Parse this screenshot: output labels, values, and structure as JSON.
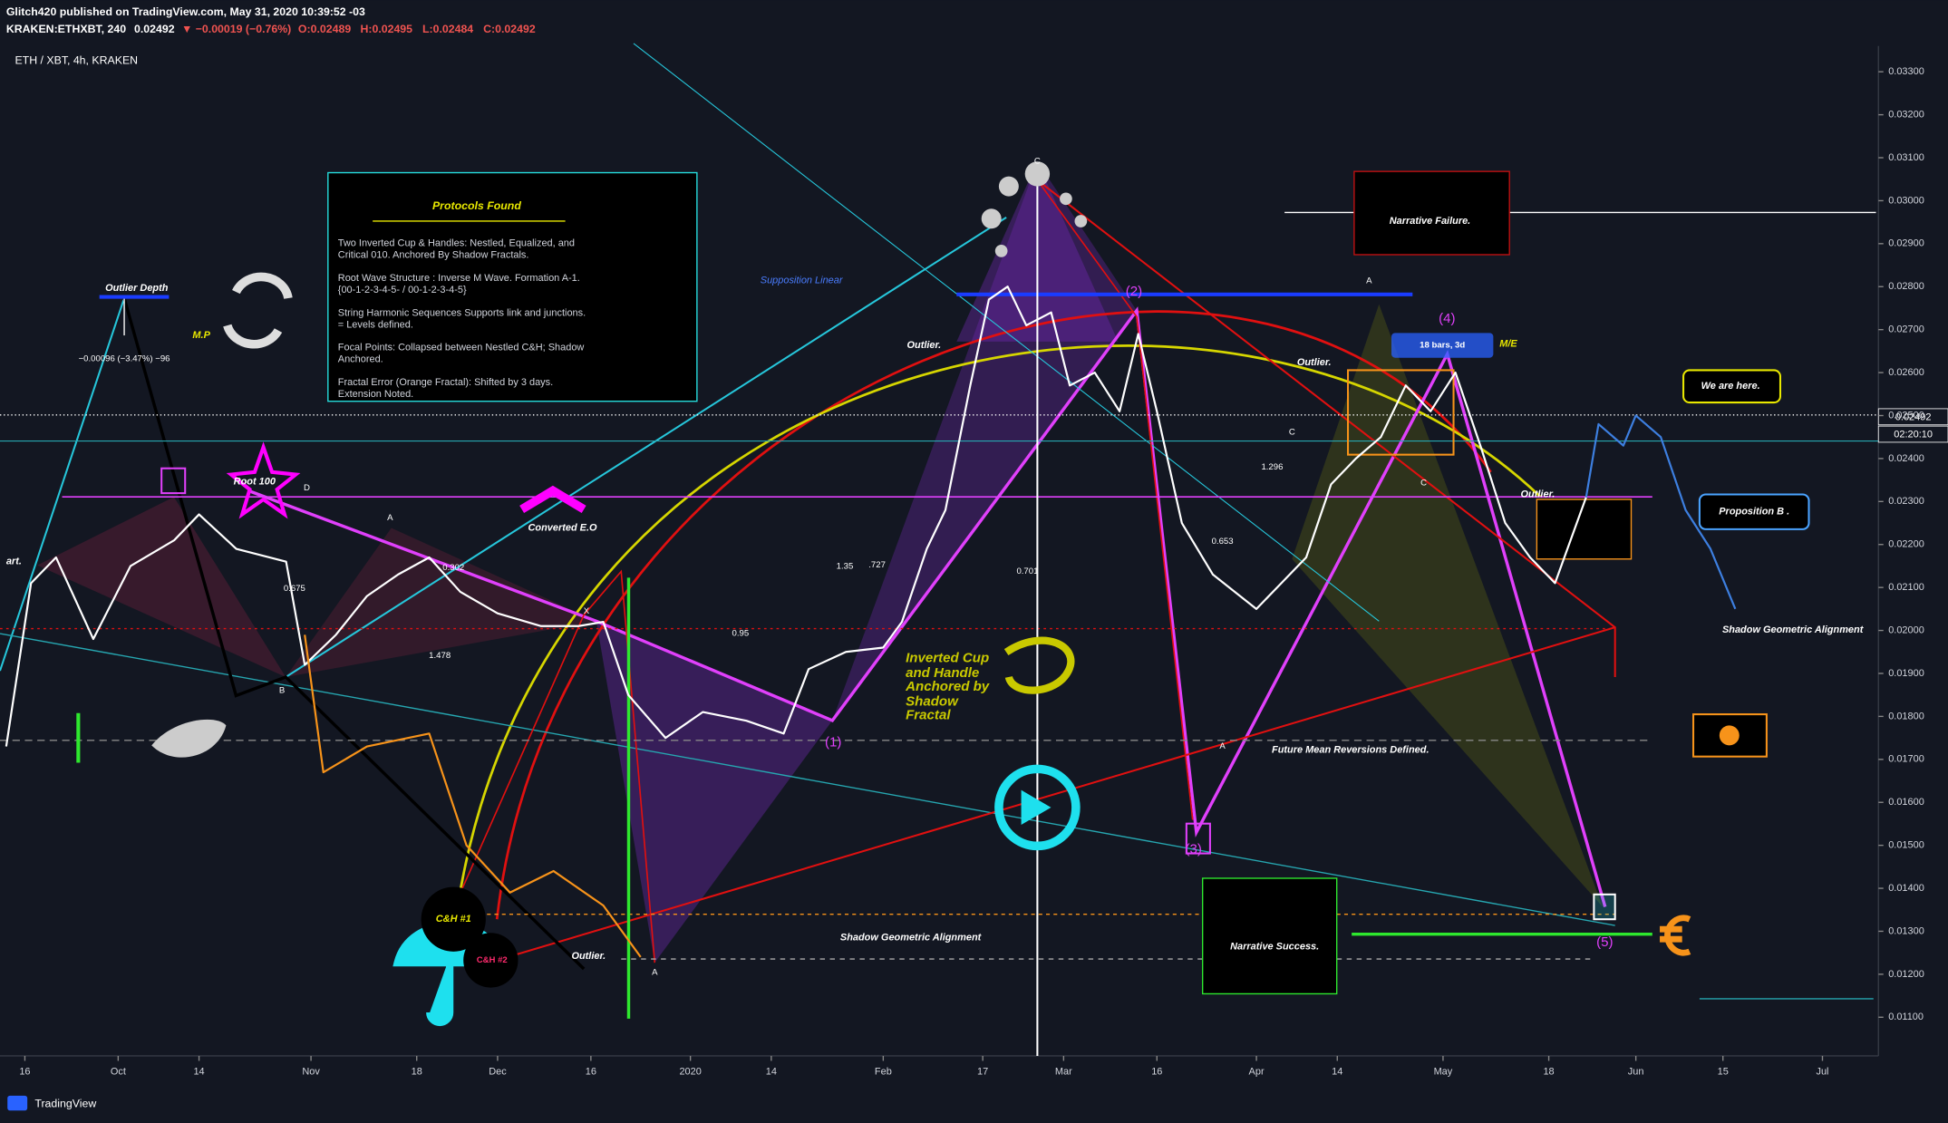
{
  "header": {
    "publisher": "Glitch420 published on TradingView.com, May 31, 2020 10:39:52 -03",
    "symbol": "KRAKEN:ETHXBT, 240",
    "last": "0.02492",
    "change": "▼ −0.00019 (−0.76%)",
    "open": "O:0.02489",
    "high": "H:0.02495",
    "low": "L:0.02484",
    "close": "C:0.02492"
  },
  "footer": "TradingView",
  "info_box": {
    "title": "Protocols Found",
    "paragraphs": [
      [
        "Two Inverted Cup & Handles: Nestled, Equalized, and",
        "Critical 010. Anchored By Shadow Fractals."
      ],
      [
        "Root Wave Structure : Inverse M Wave. Formation A-1.",
        "{00-1-2-3-4-5- / 00-1-2-3-4-5}"
      ],
      [
        "String Harmonic Sequences Supports link and junctions.",
        "= Levels defined."
      ],
      [
        "Focal Points: Collapsed between Nestled C&H; Shadow",
        "Anchored."
      ],
      [
        "Fractal Error (Orange Fractal): Shifted by 3 days.",
        "Extension Noted."
      ]
    ]
  },
  "chart_data": {
    "type": "line",
    "title": "ETH / XBT, 4h, KRAKEN",
    "price_label": "0.02492",
    "countdown": "02:20:10",
    "grid": false,
    "xlim": [
      "2019-09-13",
      "2020-07-10"
    ],
    "ylim": [
      0.0101,
      0.0336
    ],
    "yticks": [
      {
        "value": 0.011,
        "label": "0.01100"
      },
      {
        "value": 0.012,
        "label": "0.01200"
      },
      {
        "value": 0.013,
        "label": "0.01300"
      },
      {
        "value": 0.014,
        "label": "0.01400"
      },
      {
        "value": 0.015,
        "label": "0.01500"
      },
      {
        "value": 0.016,
        "label": "0.01600"
      },
      {
        "value": 0.017,
        "label": "0.01700"
      },
      {
        "value": 0.018,
        "label": "0.01800"
      },
      {
        "value": 0.019,
        "label": "0.01900"
      },
      {
        "value": 0.02,
        "label": "0.02000"
      },
      {
        "value": 0.021,
        "label": "0.02100"
      },
      {
        "value": 0.022,
        "label": "0.02200"
      },
      {
        "value": 0.023,
        "label": "0.02300"
      },
      {
        "value": 0.024,
        "label": "0.02400"
      },
      {
        "value": 0.025,
        "label": "0.02500"
      },
      {
        "value": 0.026,
        "label": "0.02600"
      },
      {
        "value": 0.027,
        "label": "0.02700"
      },
      {
        "value": 0.028,
        "label": "0.02800"
      },
      {
        "value": 0.029,
        "label": "0.02900"
      },
      {
        "value": 0.03,
        "label": "0.03000"
      },
      {
        "value": 0.031,
        "label": "0.03100"
      },
      {
        "value": 0.032,
        "label": "0.03200"
      },
      {
        "value": 0.033,
        "label": "0.03300"
      }
    ],
    "xticks": [
      {
        "value": "2019-09-16",
        "label": "16"
      },
      {
        "value": "2019-10-01",
        "label": "Oct"
      },
      {
        "value": "2019-10-14",
        "label": "14"
      },
      {
        "value": "2019-11-01",
        "label": "Nov"
      },
      {
        "value": "2019-11-18",
        "label": "18"
      },
      {
        "value": "2019-12-01",
        "label": "Dec"
      },
      {
        "value": "2019-12-16",
        "label": "16"
      },
      {
        "value": "2020-01-01",
        "label": "2020"
      },
      {
        "value": "2020-01-14",
        "label": "14"
      },
      {
        "value": "2020-02-01",
        "label": "Feb"
      },
      {
        "value": "2020-02-17",
        "label": "17"
      },
      {
        "value": "2020-03-01",
        "label": "Mar"
      },
      {
        "value": "2020-03-16",
        "label": "16"
      },
      {
        "value": "2020-04-01",
        "label": "Apr"
      },
      {
        "value": "2020-04-14",
        "label": "14"
      },
      {
        "value": "2020-05-01",
        "label": "May"
      },
      {
        "value": "2020-05-18",
        "label": "18"
      },
      {
        "value": "2020-06-01",
        "label": "Jun"
      },
      {
        "value": "2020-06-15",
        "label": "15"
      },
      {
        "value": "2020-07-01",
        "label": "Jul"
      }
    ],
    "series": [
      {
        "color": "#ffffff",
        "x": [
          "2019-09-13",
          "2019-09-17",
          "2019-09-21",
          "2019-09-27",
          "2019-10-03",
          "2019-10-10",
          "2019-10-14",
          "2019-10-20",
          "2019-10-28",
          "2019-10-31",
          "2019-11-05",
          "2019-11-10",
          "2019-11-15",
          "2019-11-20",
          "2019-11-25",
          "2019-12-01",
          "2019-12-08",
          "2019-12-14",
          "2019-12-18",
          "2019-12-22",
          "2019-12-28",
          "2020-01-03",
          "2020-01-10",
          "2020-01-16",
          "2020-01-20",
          "2020-01-26",
          "2020-02-01",
          "2020-02-04",
          "2020-02-08",
          "2020-02-11",
          "2020-02-15",
          "2020-02-18",
          "2020-02-21",
          "2020-02-24",
          "2020-02-28",
          "2020-03-02",
          "2020-03-06",
          "2020-03-10",
          "2020-03-13",
          "2020-03-16",
          "2020-03-20",
          "2020-03-25",
          "2020-04-01",
          "2020-04-05",
          "2020-04-09",
          "2020-04-13",
          "2020-04-17",
          "2020-04-21",
          "2020-04-25",
          "2020-04-29",
          "2020-05-03",
          "2020-05-07",
          "2020-05-11",
          "2020-05-15",
          "2020-05-19",
          "2020-05-24"
        ],
        "values": [
          0.0173,
          0.0211,
          0.0217,
          0.0198,
          0.0215,
          0.0221,
          0.0227,
          0.0219,
          0.0216,
          0.0192,
          0.0199,
          0.0208,
          0.0213,
          0.0217,
          0.0209,
          0.0204,
          0.0201,
          0.0201,
          0.0202,
          0.0185,
          0.0175,
          0.0181,
          0.0179,
          0.0176,
          0.0191,
          0.0195,
          0.0196,
          0.0202,
          0.0219,
          0.0228,
          0.0257,
          0.0277,
          0.028,
          0.0271,
          0.0274,
          0.0257,
          0.026,
          0.0251,
          0.0269,
          0.0251,
          0.0225,
          0.0213,
          0.0205,
          0.0211,
          0.0217,
          0.0234,
          0.024,
          0.0245,
          0.0257,
          0.0251,
          0.026,
          0.0243,
          0.0225,
          0.0217,
          0.0211,
          0.0231
        ]
      },
      {
        "color": "#f7931a",
        "x": [
          "2019-10-31",
          "2019-11-03",
          "2019-11-10",
          "2019-11-20",
          "2019-11-26",
          "2019-12-03",
          "2019-12-10",
          "2019-12-18",
          "2019-12-24"
        ],
        "values": [
          0.0199,
          0.0167,
          0.0173,
          0.0176,
          0.015,
          0.0139,
          0.0144,
          0.0136,
          0.0124
        ]
      },
      {
        "color": "#3d7fe0",
        "x": [
          "2020-05-24",
          "2020-05-26",
          "2020-05-30",
          "2020-06-01",
          "2020-06-05",
          "2020-06-09",
          "2020-06-13",
          "2020-06-17"
        ],
        "values": [
          0.0231,
          0.0248,
          0.0243,
          0.025,
          0.0245,
          0.0228,
          0.0219,
          0.0205
        ]
      }
    ],
    "annotations": [
      "Outlier Depth",
      "M.P",
      "−0.00096 (−3.47%) −96",
      "Root 100",
      "Converted E.O",
      "Supposition Linear",
      "Outlier.",
      "Outlier.",
      "Outlier.",
      "Outlier.",
      "Narrative Failure.",
      "18 bars, 3d",
      "M/E",
      "(1)",
      "(2)",
      "(3)",
      "(4)",
      "(5)",
      "We are here.",
      "Proposition B .",
      "Shadow Geometric Alignment",
      "Shadow Geometric Alignment",
      "Future Mean Reversions Defined.",
      "Narrative Success.",
      "C&H #1",
      "C&H #2",
      "Inverted Cup",
      "and Handle",
      "Anchored by",
      "Shadow",
      "Fractal",
      "art.",
      "0.675",
      "1.478",
      "0.302",
      "0.95",
      "1.35",
      ".727",
      "0.701",
      "0.653",
      "1.296",
      "A",
      "B",
      "D",
      "X",
      "A",
      "C",
      "A",
      "C",
      "A",
      "C"
    ]
  }
}
